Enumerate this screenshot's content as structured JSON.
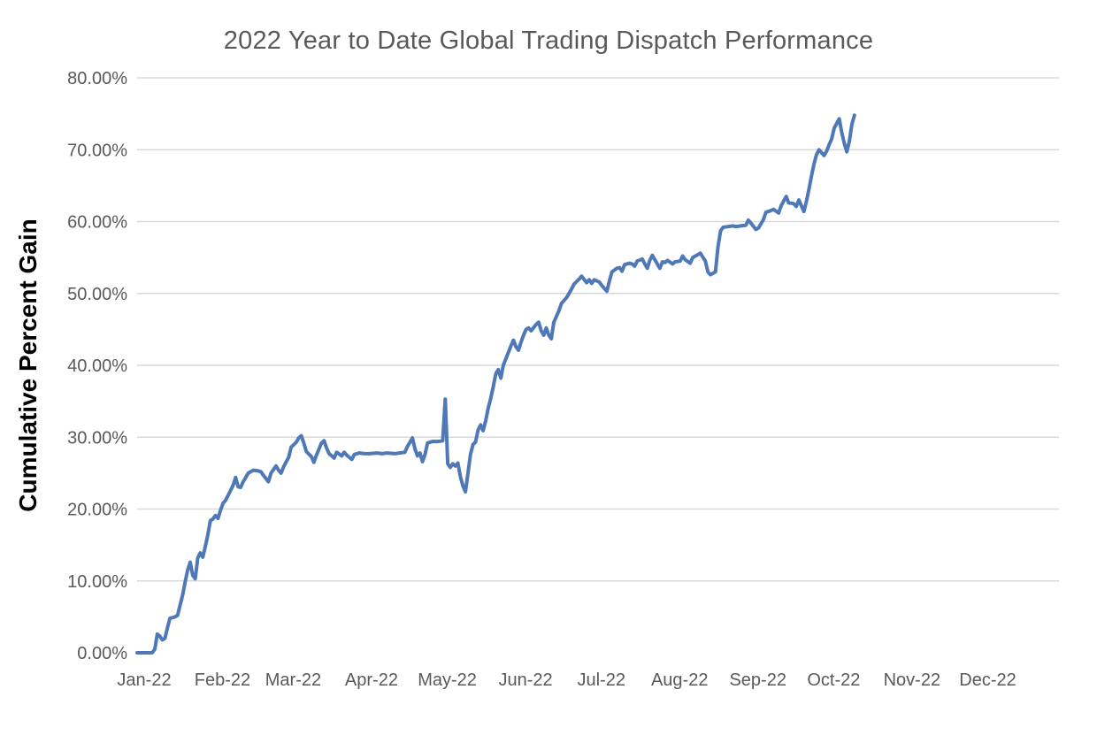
{
  "colors": {
    "background": "#FFFFFF",
    "line": "#4E78B6",
    "gridline": "#D9D9D9",
    "title_text": "#595959",
    "tick_text": "#595959",
    "y_axis_title_text": "#000000"
  },
  "chart_data": {
    "type": "line",
    "title": "2022 Year to Date Global Trading Dispatch Performance",
    "ylabel": "Cumulative Percent Gain",
    "xlabel": "",
    "ylim": [
      0,
      80
    ],
    "x_range_days": [
      0,
      365
    ],
    "grid": "horizontal-only",
    "legend": "none",
    "y_ticks": [
      {
        "value": 0,
        "label": "0.00%"
      },
      {
        "value": 10,
        "label": "10.00%"
      },
      {
        "value": 20,
        "label": "20.00%"
      },
      {
        "value": 30,
        "label": "30.00%"
      },
      {
        "value": 40,
        "label": "40.00%"
      },
      {
        "value": 50,
        "label": "50.00%"
      },
      {
        "value": 60,
        "label": "60.00%"
      },
      {
        "value": 70,
        "label": "70.00%"
      },
      {
        "value": 80,
        "label": "80.00%"
      }
    ],
    "x_ticks": [
      {
        "day": 0,
        "label": "Jan-22"
      },
      {
        "day": 31,
        "label": "Feb-22"
      },
      {
        "day": 59,
        "label": "Mar-22"
      },
      {
        "day": 90,
        "label": "Apr-22"
      },
      {
        "day": 120,
        "label": "May-22"
      },
      {
        "day": 151,
        "label": "Jun-22"
      },
      {
        "day": 181,
        "label": "Jul-22"
      },
      {
        "day": 212,
        "label": "Aug-22"
      },
      {
        "day": 243,
        "label": "Sep-22"
      },
      {
        "day": 273,
        "label": "Oct-22"
      },
      {
        "day": 304,
        "label": "Nov-22"
      },
      {
        "day": 334,
        "label": "Dec-22"
      }
    ],
    "series": [
      {
        "name": "Cumulative Percent Gain",
        "color": "#4E78B6",
        "stroke_width": 4,
        "x_unit": "day-of-year-2022",
        "y_unit": "percent",
        "points": [
          [
            0,
            0
          ],
          [
            2,
            0
          ],
          [
            4,
            0
          ],
          [
            6,
            0
          ],
          [
            7,
            0.5
          ],
          [
            8,
            2.6
          ],
          [
            9,
            2.3
          ],
          [
            10,
            1.8
          ],
          [
            11,
            2.0
          ],
          [
            12,
            3.5
          ],
          [
            13,
            4.8
          ],
          [
            15,
            5.0
          ],
          [
            16,
            5.2
          ],
          [
            17,
            6.6
          ],
          [
            18,
            8.0
          ],
          [
            19,
            9.8
          ],
          [
            20,
            11.5
          ],
          [
            21,
            12.6
          ],
          [
            22,
            10.8
          ],
          [
            23,
            10.3
          ],
          [
            24,
            13.2
          ],
          [
            25,
            13.9
          ],
          [
            26,
            13.3
          ],
          [
            27,
            14.8
          ],
          [
            28,
            16.4
          ],
          [
            29,
            18.4
          ],
          [
            30,
            18.6
          ],
          [
            31,
            19.1
          ],
          [
            32,
            18.7
          ],
          [
            33,
            19.8
          ],
          [
            34,
            20.8
          ],
          [
            35,
            21.2
          ],
          [
            36,
            21.9
          ],
          [
            38,
            23.3
          ],
          [
            39,
            24.4
          ],
          [
            40,
            23.1
          ],
          [
            41,
            23.0
          ],
          [
            42,
            23.8
          ],
          [
            43,
            24.4
          ],
          [
            44,
            25.0
          ],
          [
            45,
            25.2
          ],
          [
            46,
            25.4
          ],
          [
            48,
            25.3
          ],
          [
            49,
            25.2
          ],
          [
            50,
            24.7
          ],
          [
            52,
            23.8
          ],
          [
            53,
            25.0
          ],
          [
            55,
            26.0
          ],
          [
            56,
            25.4
          ],
          [
            57,
            25.0
          ],
          [
            58,
            25.9
          ],
          [
            60,
            27.2
          ],
          [
            61,
            28.6
          ],
          [
            63,
            29.3
          ],
          [
            64,
            29.9
          ],
          [
            65,
            30.2
          ],
          [
            66,
            29.2
          ],
          [
            67,
            28.0
          ],
          [
            69,
            27.3
          ],
          [
            70,
            26.5
          ],
          [
            71,
            27.5
          ],
          [
            73,
            29.2
          ],
          [
            74,
            29.5
          ],
          [
            75,
            28.5
          ],
          [
            76,
            27.7
          ],
          [
            78,
            27.1
          ],
          [
            79,
            27.9
          ],
          [
            81,
            27.4
          ],
          [
            82,
            27.9
          ],
          [
            83,
            27.5
          ],
          [
            85,
            26.9
          ],
          [
            86,
            27.6
          ],
          [
            88,
            27.8
          ],
          [
            90,
            27.7
          ],
          [
            92,
            27.7
          ],
          [
            95,
            27.8
          ],
          [
            97,
            27.7
          ],
          [
            99,
            27.8
          ],
          [
            102,
            27.7
          ],
          [
            104,
            27.8
          ],
          [
            106,
            27.9
          ],
          [
            107,
            28.7
          ],
          [
            109,
            29.9
          ],
          [
            110,
            28.4
          ],
          [
            111,
            27.4
          ],
          [
            112,
            27.8
          ],
          [
            113,
            26.6
          ],
          [
            114,
            27.6
          ],
          [
            115,
            29.2
          ],
          [
            117,
            29.4
          ],
          [
            118,
            29.4
          ],
          [
            119,
            29.4
          ],
          [
            121,
            29.5
          ],
          [
            122,
            35.3
          ],
          [
            123,
            26.3
          ],
          [
            124,
            25.8
          ],
          [
            125,
            26.3
          ],
          [
            126,
            26.0
          ],
          [
            127,
            26.4
          ],
          [
            128,
            24.5
          ],
          [
            129,
            23.2
          ],
          [
            130,
            22.4
          ],
          [
            131,
            25.0
          ],
          [
            132,
            27.6
          ],
          [
            133,
            29.0
          ],
          [
            134,
            29.3
          ],
          [
            135,
            31.0
          ],
          [
            136,
            31.7
          ],
          [
            137,
            30.9
          ],
          [
            138,
            32.3
          ],
          [
            139,
            34.0
          ],
          [
            140,
            35.4
          ],
          [
            141,
            37.0
          ],
          [
            142,
            38.8
          ],
          [
            143,
            39.4
          ],
          [
            144,
            38.2
          ],
          [
            145,
            40.0
          ],
          [
            147,
            41.8
          ],
          [
            148,
            42.7
          ],
          [
            149,
            43.5
          ],
          [
            150,
            42.6
          ],
          [
            151,
            42.1
          ],
          [
            152,
            43.2
          ],
          [
            153,
            44.2
          ],
          [
            154,
            45.0
          ],
          [
            155,
            45.2
          ],
          [
            156,
            44.8
          ],
          [
            158,
            45.7
          ],
          [
            159,
            46.0
          ],
          [
            160,
            44.8
          ],
          [
            161,
            44.2
          ],
          [
            162,
            45.2
          ],
          [
            163,
            44.2
          ],
          [
            164,
            43.7
          ],
          [
            165,
            46.0
          ],
          [
            166,
            46.8
          ],
          [
            167,
            47.6
          ],
          [
            168,
            48.6
          ],
          [
            170,
            49.4
          ],
          [
            171,
            50.0
          ],
          [
            172,
            50.6
          ],
          [
            173,
            51.3
          ],
          [
            175,
            52.0
          ],
          [
            176,
            52.4
          ],
          [
            178,
            51.5
          ],
          [
            179,
            51.9
          ],
          [
            180,
            51.4
          ],
          [
            181,
            51.9
          ],
          [
            183,
            51.6
          ],
          [
            184,
            51.1
          ],
          [
            186,
            50.3
          ],
          [
            187,
            51.7
          ],
          [
            188,
            53.0
          ],
          [
            190,
            53.5
          ],
          [
            191,
            53.6
          ],
          [
            192,
            53.1
          ],
          [
            193,
            54.0
          ],
          [
            195,
            54.2
          ],
          [
            196,
            54.1
          ],
          [
            197,
            53.8
          ],
          [
            198,
            54.5
          ],
          [
            200,
            54.8
          ],
          [
            201,
            54.1
          ],
          [
            202,
            53.5
          ],
          [
            203,
            54.6
          ],
          [
            204,
            55.3
          ],
          [
            205,
            54.7
          ],
          [
            207,
            53.5
          ],
          [
            208,
            54.4
          ],
          [
            209,
            54.3
          ],
          [
            210,
            54.6
          ],
          [
            212,
            54.1
          ],
          [
            213,
            54.4
          ],
          [
            215,
            54.5
          ],
          [
            216,
            55.2
          ],
          [
            217,
            54.7
          ],
          [
            219,
            54.2
          ],
          [
            220,
            55.0
          ],
          [
            222,
            55.4
          ],
          [
            223,
            55.6
          ],
          [
            225,
            54.5
          ],
          [
            226,
            53.0
          ],
          [
            227,
            52.6
          ],
          [
            229,
            53.0
          ],
          [
            230,
            56.5
          ],
          [
            231,
            58.7
          ],
          [
            232,
            59.2
          ],
          [
            234,
            59.3
          ],
          [
            236,
            59.4
          ],
          [
            237,
            59.3
          ],
          [
            239,
            59.4
          ],
          [
            241,
            59.5
          ],
          [
            242,
            60.2
          ],
          [
            243,
            59.8
          ],
          [
            245,
            58.9
          ],
          [
            246,
            59.1
          ],
          [
            248,
            60.3
          ],
          [
            249,
            61.3
          ],
          [
            250,
            61.4
          ],
          [
            252,
            61.7
          ],
          [
            254,
            61.2
          ],
          [
            255,
            62.2
          ],
          [
            257,
            63.5
          ],
          [
            258,
            62.6
          ],
          [
            260,
            62.5
          ],
          [
            261,
            62.1
          ],
          [
            262,
            63.0
          ],
          [
            264,
            61.4
          ],
          [
            265,
            62.8
          ],
          [
            266,
            64.5
          ],
          [
            267,
            66.3
          ],
          [
            268,
            68.0
          ],
          [
            269,
            69.3
          ],
          [
            270,
            70.0
          ],
          [
            272,
            69.2
          ],
          [
            273,
            69.8
          ],
          [
            274,
            70.7
          ],
          [
            275,
            71.5
          ],
          [
            276,
            73.0
          ],
          [
            278,
            74.3
          ],
          [
            279,
            72.4
          ],
          [
            280,
            70.9
          ],
          [
            281,
            69.7
          ],
          [
            282,
            71.2
          ],
          [
            283,
            73.5
          ],
          [
            284,
            74.8
          ]
        ]
      }
    ]
  }
}
